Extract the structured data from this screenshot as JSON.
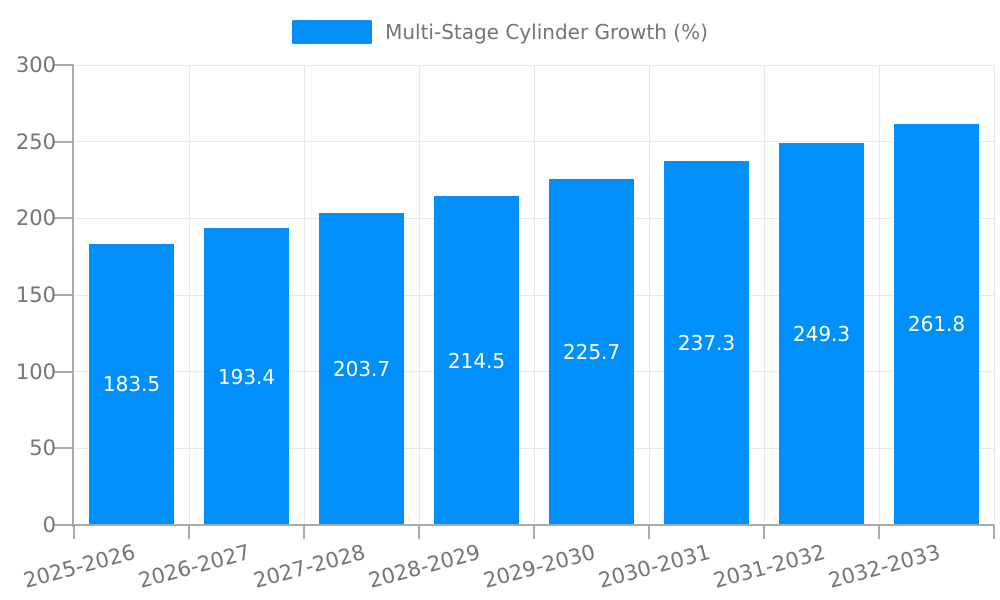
{
  "legend": {
    "label": "Multi-Stage Cylinder Growth (%)"
  },
  "chart_data": {
    "type": "bar",
    "title": "Multi-Stage Cylinder Growth (%)",
    "categories": [
      "2025-2026",
      "2026-2027",
      "2027-2028",
      "2028-2029",
      "2029-2030",
      "2030-2031",
      "2031-2032",
      "2032-2033"
    ],
    "values": [
      183.5,
      193.4,
      203.7,
      214.5,
      225.7,
      237.3,
      249.3,
      261.8
    ],
    "value_labels": [
      "183.5",
      "193.4",
      "203.7",
      "214.5",
      "225.7",
      "237.3",
      "249.3",
      "261.8"
    ],
    "ytick_labels": [
      "0",
      "50",
      "100",
      "150",
      "200",
      "250",
      "300"
    ],
    "xlabel": "",
    "ylabel": "",
    "ylim": [
      0,
      300
    ],
    "ytick_step": 50,
    "grid": true,
    "legend_position": "top-center",
    "x_label_rotation_deg": -15,
    "colors": {
      "bar": "#008FFB",
      "grid": "#e8e8e8",
      "axis": "#aaaaaa",
      "tick_text": "#757575",
      "value_text": "#ffffff",
      "background": "#ffffff"
    }
  }
}
